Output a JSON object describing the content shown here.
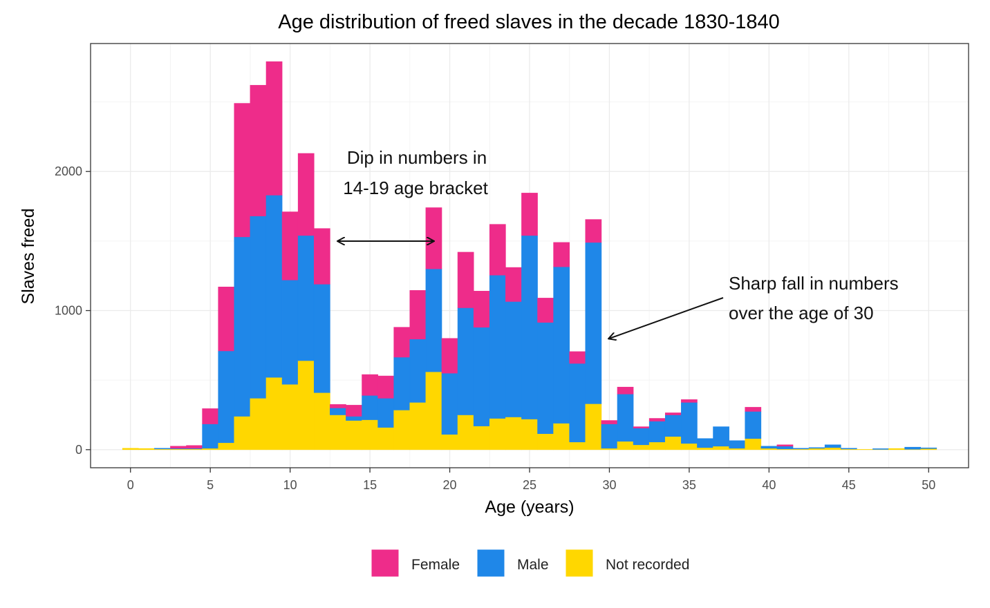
{
  "chart_data": {
    "type": "bar",
    "stacked": true,
    "title": "Age distribution of freed slaves in the decade 1830-1840",
    "xlabel": "Age (years)",
    "ylabel": "Slaves freed",
    "xlim": [
      -2.5,
      52.5
    ],
    "ylim": [
      -130,
      2920
    ],
    "x_ticks": [
      0,
      5,
      10,
      15,
      20,
      25,
      30,
      35,
      40,
      45,
      50
    ],
    "y_ticks": [
      0,
      1000,
      2000
    ],
    "grid": true,
    "legend_position": "bottom",
    "bin_width": 1,
    "x": [
      0,
      1,
      2,
      3,
      4,
      5,
      6,
      7,
      8,
      9,
      10,
      11,
      12,
      13,
      14,
      15,
      16,
      17,
      18,
      19,
      20,
      21,
      22,
      23,
      24,
      25,
      26,
      27,
      28,
      29,
      30,
      31,
      32,
      33,
      34,
      35,
      36,
      37,
      38,
      39,
      40,
      41,
      42,
      43,
      44,
      45,
      46,
      47,
      48,
      49,
      50
    ],
    "series": [
      {
        "name": "Not recorded",
        "color": "#FFD700",
        "values": [
          10,
          8,
          5,
          5,
          5,
          10,
          50,
          240,
          370,
          520,
          470,
          640,
          410,
          250,
          210,
          215,
          160,
          285,
          340,
          560,
          110,
          250,
          170,
          225,
          235,
          220,
          115,
          190,
          55,
          330,
          10,
          60,
          35,
          55,
          95,
          45,
          15,
          25,
          10,
          80,
          10,
          5,
          5,
          10,
          15,
          5,
          2,
          2,
          8,
          3,
          8
        ]
      },
      {
        "name": "Male",
        "color": "#1F87E8",
        "values": [
          0,
          0,
          5,
          5,
          5,
          175,
          660,
          1290,
          1310,
          1310,
          750,
          900,
          780,
          50,
          30,
          175,
          210,
          380,
          455,
          740,
          440,
          770,
          710,
          1030,
          830,
          1320,
          800,
          1125,
          565,
          1160,
          175,
          340,
          120,
          150,
          155,
          295,
          65,
          140,
          55,
          195,
          15,
          20,
          5,
          5,
          20,
          5,
          0,
          5,
          0,
          15,
          5
        ]
      },
      {
        "name": "Female",
        "color": "#EE2C8A",
        "values": [
          0,
          0,
          0,
          15,
          20,
          110,
          460,
          960,
          940,
          960,
          490,
          590,
          400,
          25,
          80,
          150,
          160,
          215,
          350,
          440,
          250,
          400,
          260,
          365,
          245,
          305,
          175,
          175,
          85,
          165,
          25,
          50,
          10,
          20,
          15,
          20,
          0,
          0,
          0,
          30,
          0,
          10,
          0,
          0,
          0,
          0,
          0,
          0,
          0,
          0,
          0
        ]
      }
    ],
    "legend": [
      {
        "label": "Female",
        "color": "#EE2C8A"
      },
      {
        "label": "Male",
        "color": "#1F87E8"
      },
      {
        "label": "Not recorded",
        "color": "#FFD700"
      }
    ],
    "annotations": [
      {
        "line1": "Dip in numbers in",
        "line2": "14-19 age bracket"
      },
      {
        "line1": "Sharp fall in numbers",
        "line2": "over the age of 30"
      }
    ]
  }
}
